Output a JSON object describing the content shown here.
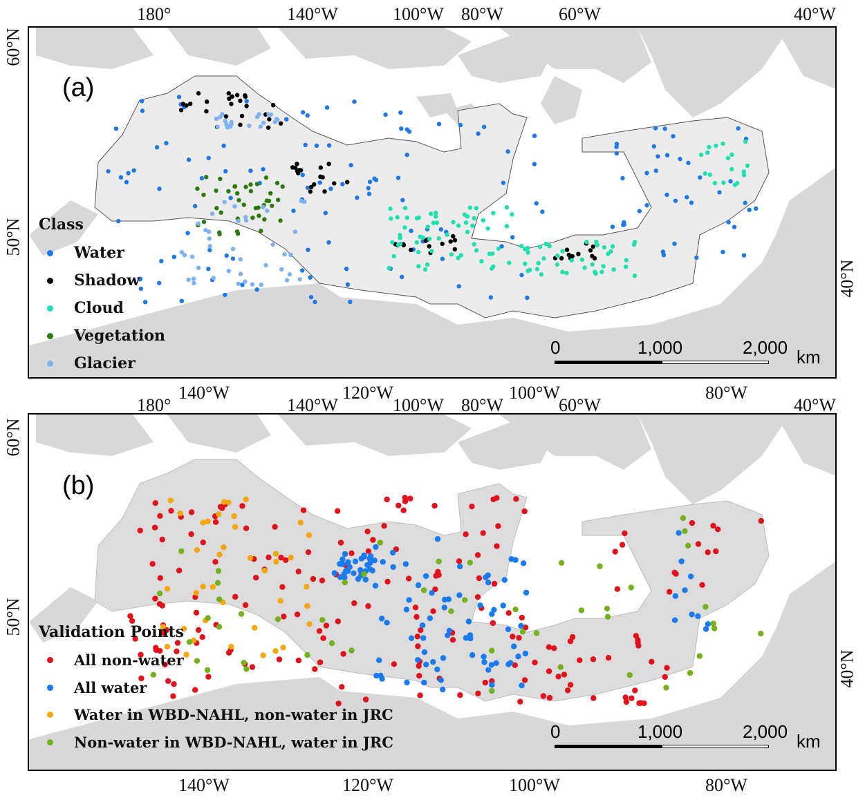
{
  "panel_a": {
    "tag": "(a)",
    "legend_title": "Class",
    "legend": [
      {
        "label": "Water",
        "color": "#1f78e8"
      },
      {
        "label": "Shadow",
        "color": "#000000"
      },
      {
        "label": "Cloud",
        "color": "#1fe0b0"
      },
      {
        "label": "Vegetation",
        "color": "#2e7a0e"
      },
      {
        "label": "Glacier",
        "color": "#7fb2f0"
      }
    ],
    "top_labels": [
      "180°",
      "140°W",
      "100°W",
      "80°W",
      "60°W",
      "40°W"
    ],
    "bottom_labels": [
      "140°W",
      "120°W",
      "100°W",
      "80°W"
    ],
    "left_label": "60°N",
    "left_label_2": "50°N",
    "right_label": "40°N",
    "scale": {
      "labels": [
        "0",
        "1,000",
        "2,000"
      ],
      "unit": "km"
    }
  },
  "panel_b": {
    "tag": "(b)",
    "legend_title": "Validation Points",
    "legend": [
      {
        "label": "All non-water",
        "color": "#e0121c"
      },
      {
        "label": "All water",
        "color": "#1a7bf0"
      },
      {
        "label": "Water in WBD-NAHL, non-water in JRC",
        "color": "#f5a70f"
      },
      {
        "label": "Non-water in WBD-NAHL, water in JRC",
        "color": "#73b21c"
      }
    ],
    "top_labels": [
      "180°",
      "140°W",
      "100°W",
      "80°W",
      "60°W",
      "40°W"
    ],
    "bottom_labels": [
      "140°W",
      "120°W",
      "100°W",
      "80°W"
    ],
    "left_label": "60°N",
    "left_label_2": "50°N",
    "right_label": "40°N",
    "scale": {
      "labels": [
        "0",
        "1,000",
        "2,000"
      ],
      "unit": "km"
    }
  },
  "colors": {
    "land": "#dcdcdc",
    "study_area": "#ececec",
    "border": "#555555"
  }
}
